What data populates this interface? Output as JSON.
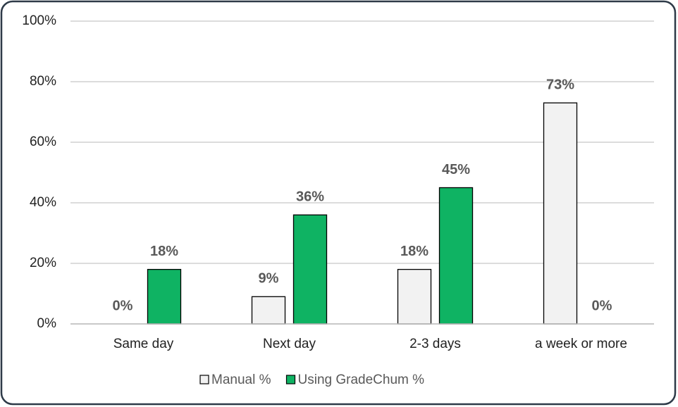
{
  "chart_data": {
    "type": "bar",
    "categories": [
      "Same day",
      "Next day",
      "2-3 days",
      "a week or more"
    ],
    "series": [
      {
        "name": "Manual %",
        "color": "#f2f2f2",
        "values": [
          0,
          9,
          18,
          73
        ],
        "value_labels": [
          "0%",
          "9%",
          "18%",
          "73%"
        ]
      },
      {
        "name": "Using GradeChum %",
        "color": "#0fb363",
        "values": [
          18,
          36,
          45,
          0
        ],
        "value_labels": [
          "18%",
          "36%",
          "45%",
          "0%"
        ]
      }
    ],
    "ylim": [
      0,
      100
    ],
    "yticks": [
      {
        "value": 0,
        "label": "0%"
      },
      {
        "value": 20,
        "label": "20%"
      },
      {
        "value": 40,
        "label": "40%"
      },
      {
        "value": 60,
        "label": "60%"
      },
      {
        "value": 80,
        "label": "80%"
      },
      {
        "value": 100,
        "label": "100%"
      }
    ],
    "grid": true
  }
}
